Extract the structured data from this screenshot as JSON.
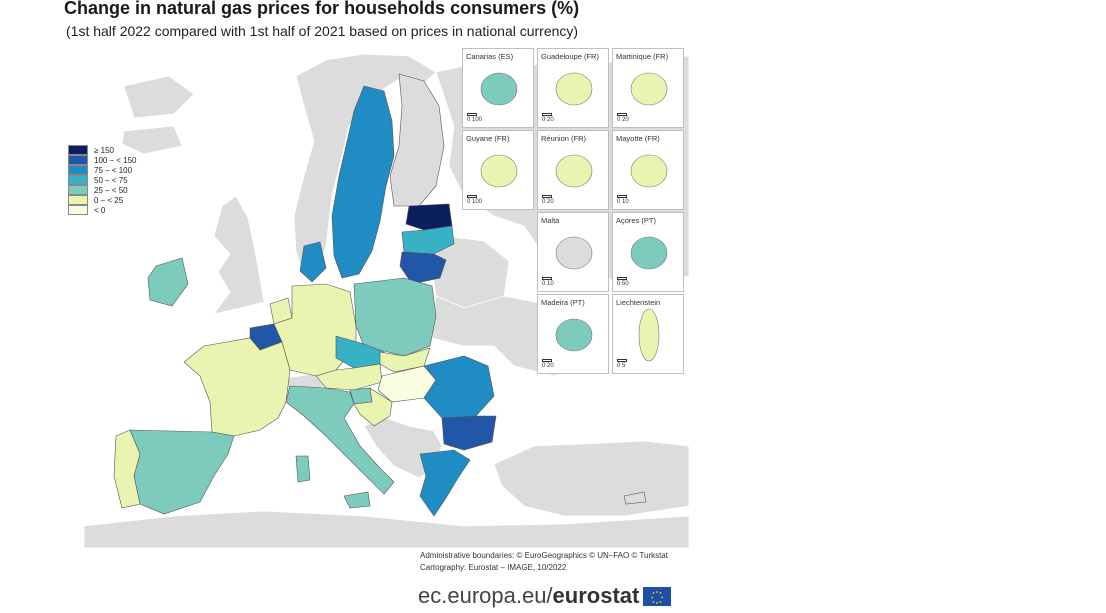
{
  "title": "Change in natural gas prices for households consumers (%)",
  "subtitle": "(1st half 2022 compared with 1st half of 2021 based on prices in national currency)",
  "legend": [
    {
      "label": "≥ 150",
      "color": "#0b1f5c"
    },
    {
      "label": "100 – < 150",
      "color": "#2157a6"
    },
    {
      "label": "75 – < 100",
      "color": "#1f8cc4"
    },
    {
      "label": "50 – < 75",
      "color": "#38b1c7"
    },
    {
      "label": "25 – < 50",
      "color": "#7dcbbd"
    },
    {
      "label": "0 – < 25",
      "color": "#e8f4b0"
    },
    {
      "label": "< 0",
      "color": "#fbfde0"
    }
  ],
  "insets": [
    {
      "label": "Canarias (ES)",
      "scale": "0   100"
    },
    {
      "label": "Guadeloupe (FR)",
      "scale": "0    20"
    },
    {
      "label": "Martinique (FR)",
      "scale": "0    20"
    },
    {
      "label": "Guyane (FR)",
      "scale": "0  100"
    },
    {
      "label": "Réunion (FR)",
      "scale": "0    20"
    },
    {
      "label": "Mayotte (FR)",
      "scale": "0    10"
    },
    {
      "label": "Malta",
      "scale": "0    10"
    },
    {
      "label": "Açores (PT)",
      "scale": "0    50"
    },
    {
      "label": "Madeira (PT)",
      "scale": "0    20"
    },
    {
      "label": "Liechtenstein",
      "scale": "0    5"
    }
  ],
  "credits": {
    "line1": "Administrative boundaries: © EuroGeographics © UN–FAO © Turkstat",
    "line2": "Cartography: Eurostat – IMAGE, 10/2022"
  },
  "footer": {
    "url": "ec.europa.eu/",
    "brand": "eurostat"
  },
  "colors": {
    "sea": "#ffffff",
    "no_data": "#e0e0e0",
    "border": "#555555"
  }
}
